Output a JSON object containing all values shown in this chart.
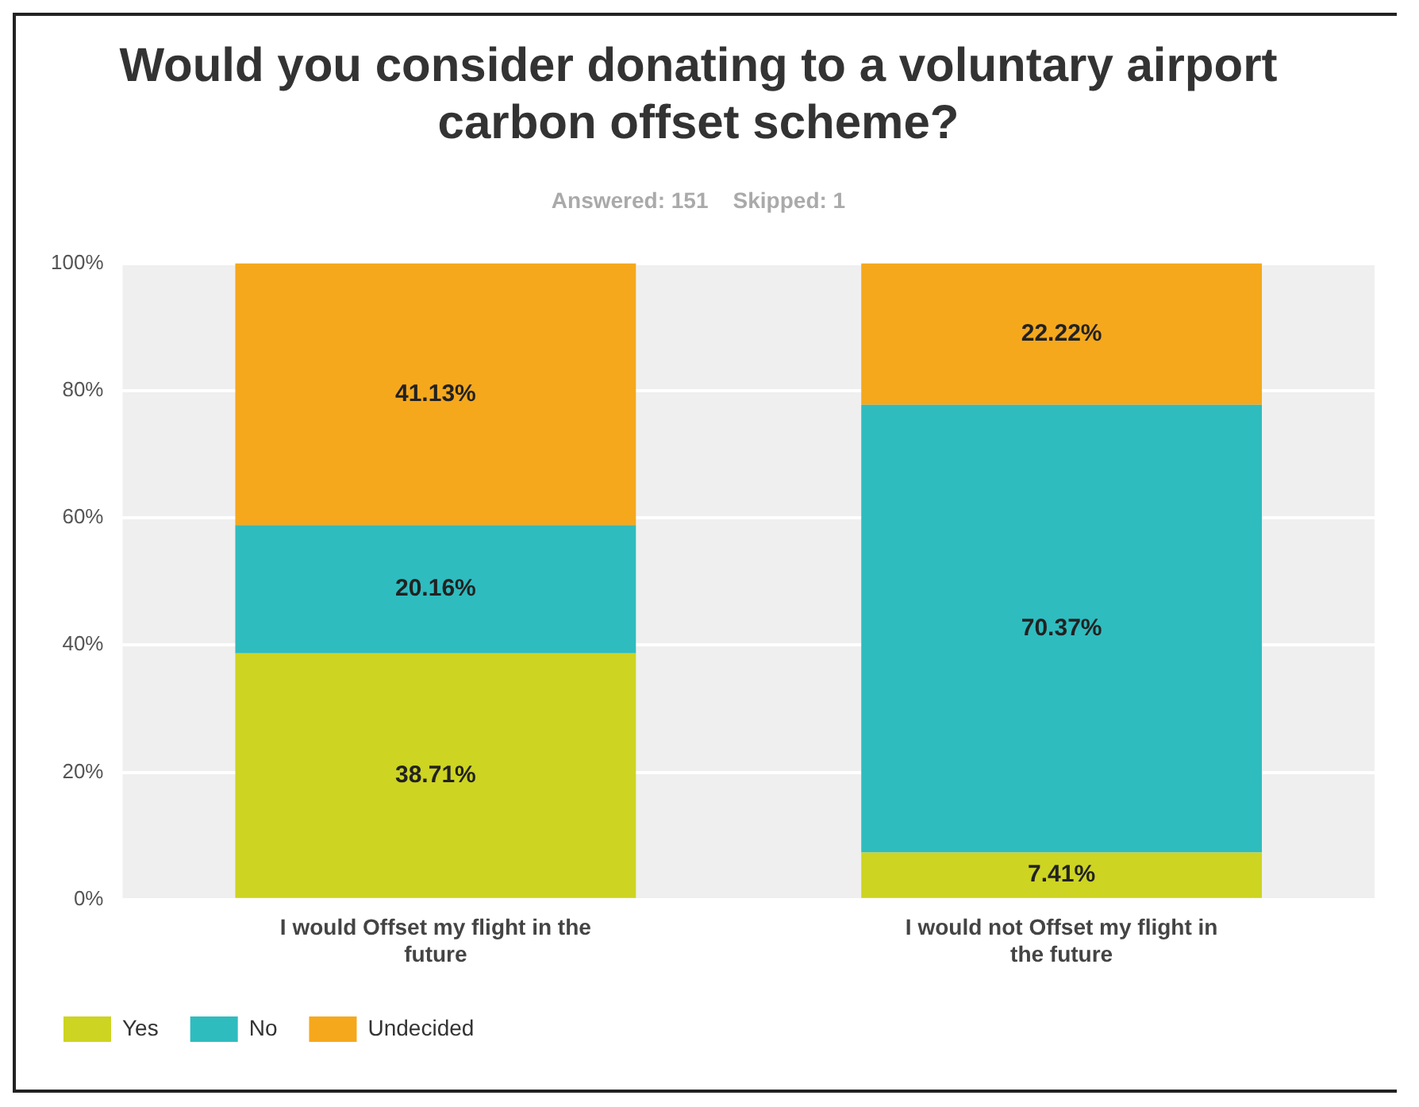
{
  "chart_data": {
    "type": "bar",
    "title": "Would you consider donating to a voluntary airport carbon offset scheme?",
    "subtitle": "Answered: 151    Skipped: 1",
    "categories": [
      "I would Offset my flight in the future",
      "I would not Offset my flight in the future"
    ],
    "stacked": true,
    "series": [
      {
        "name": "Yes",
        "color": "#cdd422",
        "values": [
          38.71,
          7.41
        ],
        "value_labels": [
          "38.71%",
          "7.41%"
        ]
      },
      {
        "name": "No",
        "color": "#2fbcbf",
        "values": [
          20.16,
          70.37
        ],
        "value_labels": [
          "20.16%",
          "70.37%"
        ]
      },
      {
        "name": "Undecided",
        "color": "#f5a81c",
        "values": [
          41.13,
          22.22
        ],
        "value_labels": [
          "41.13%",
          "22.22%"
        ]
      }
    ],
    "ylim": [
      0,
      100
    ],
    "yticks": [
      {
        "value": 0,
        "label": "0%"
      },
      {
        "value": 20,
        "label": "20%"
      },
      {
        "value": 40,
        "label": "40%"
      },
      {
        "value": 60,
        "label": "60%"
      },
      {
        "value": 80,
        "label": "80%"
      },
      {
        "value": 100,
        "label": "100%"
      }
    ],
    "grid": "y",
    "legend": "bottom left"
  }
}
